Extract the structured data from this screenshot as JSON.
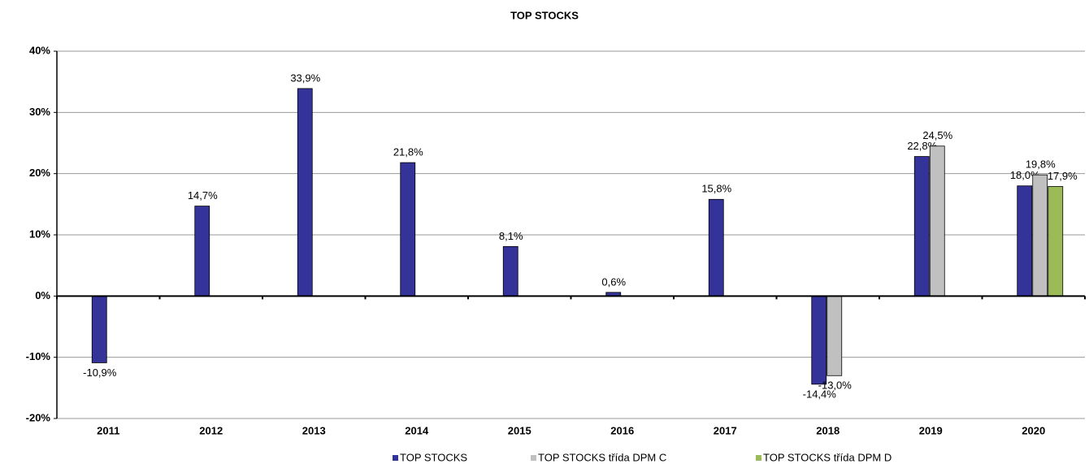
{
  "chart_data": {
    "type": "bar",
    "title": "TOP STOCKS",
    "categories": [
      "2011",
      "2012",
      "2013",
      "2014",
      "2015",
      "2016",
      "2017",
      "2018",
      "2019",
      "2020"
    ],
    "series": [
      {
        "name": "TOP STOCKS",
        "color": "#333399",
        "values": [
          -10.9,
          14.7,
          33.9,
          21.8,
          8.1,
          0.6,
          15.8,
          -14.4,
          22.8,
          18.0
        ],
        "value_labels": [
          "-10,9%",
          "14,7%",
          "33,9%",
          "21,8%",
          "8,1%",
          "0,6%",
          "15,8%",
          "-14,4%",
          "22,8%",
          "18,0%"
        ]
      },
      {
        "name": "TOP STOCKS třída DPM C",
        "color": "#c0c0c0",
        "values": [
          null,
          null,
          null,
          null,
          null,
          null,
          null,
          -13.0,
          24.5,
          19.8
        ],
        "value_labels": [
          null,
          null,
          null,
          null,
          null,
          null,
          null,
          "-13,0%",
          "24,5%",
          "19,8%"
        ]
      },
      {
        "name": "TOP STOCKS třída DPM D",
        "color": "#9bbb59",
        "values": [
          null,
          null,
          null,
          null,
          null,
          null,
          null,
          null,
          null,
          17.9
        ],
        "value_labels": [
          null,
          null,
          null,
          null,
          null,
          null,
          null,
          null,
          null,
          "17,9%"
        ]
      }
    ],
    "ylim": [
      -20,
      40
    ],
    "yticks": [
      {
        "value": -20,
        "label": "-20%"
      },
      {
        "value": -10,
        "label": "-10%"
      },
      {
        "value": 0,
        "label": "0%"
      },
      {
        "value": 10,
        "label": "10%"
      },
      {
        "value": 20,
        "label": "20%"
      },
      {
        "value": 30,
        "label": "30%"
      },
      {
        "value": 40,
        "label": "40%"
      }
    ],
    "grid": true,
    "legend": "bottom"
  }
}
